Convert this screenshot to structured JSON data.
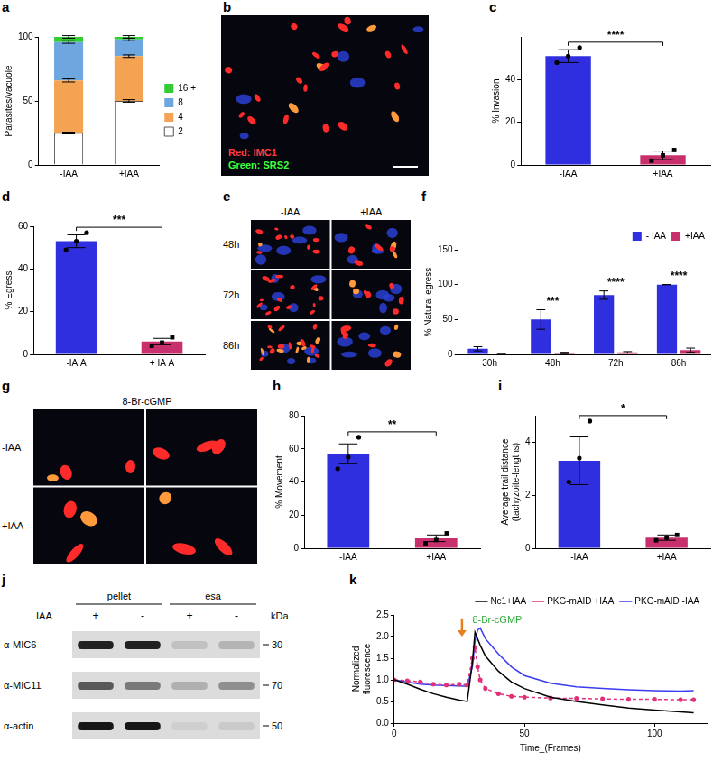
{
  "chart_data": [
    {
      "panel": "a",
      "type": "bar",
      "stacked": true,
      "categories": [
        "-IAA",
        "+IAA"
      ],
      "y_label": "Parasites/vacuole",
      "ylim": [
        0,
        100
      ],
      "yticks": [
        0,
        50,
        100
      ],
      "grid": false,
      "legend": "right",
      "series": [
        {
          "name": "2",
          "color": "#ffffff",
          "values": [
            25,
            50
          ],
          "errors": [
            0.7,
            1
          ]
        },
        {
          "name": "4",
          "color": "#f4a352",
          "values": [
            41,
            35
          ],
          "errors": [
            1.2,
            1
          ]
        },
        {
          "name": "8",
          "color": "#6ea6e0",
          "values": [
            30,
            13
          ],
          "errors": [
            1,
            1
          ]
        },
        {
          "name": "16 +",
          "color": "#33cc33",
          "values": [
            4,
            2
          ],
          "errors": [
            1,
            1
          ]
        }
      ]
    },
    {
      "panel": "c",
      "type": "bar",
      "categories": [
        "-IAA",
        "+IAA"
      ],
      "colors": [
        "#2f2fe0",
        "#c7306c"
      ],
      "values": [
        51,
        4.5
      ],
      "errors": [
        3,
        2
      ],
      "points": [
        [
          48,
          51,
          55
        ],
        [
          2,
          4.5,
          7
        ]
      ],
      "y_label": "% Invasion",
      "ylim": [
        0,
        60
      ],
      "yticks": [
        0,
        20,
        40
      ],
      "significance": "****",
      "grid": false
    },
    {
      "panel": "d",
      "type": "bar",
      "categories": [
        "-IA A",
        "+ IA A"
      ],
      "colors": [
        "#2f2fe0",
        "#c7306c"
      ],
      "values": [
        53,
        6
      ],
      "errors": [
        3,
        1.5
      ],
      "points": [
        [
          49,
          53,
          57
        ],
        [
          4,
          5.5,
          8
        ]
      ],
      "y_label": "% Egress",
      "ylim": [
        0,
        60
      ],
      "yticks": [
        0,
        20,
        40,
        60
      ],
      "significance": "***",
      "grid": false
    },
    {
      "panel": "f",
      "type": "bar",
      "categories": [
        "30h",
        "48h",
        "72h",
        "86h"
      ],
      "y_label": "% Natural egress",
      "ylim": [
        0,
        150
      ],
      "yticks": [
        0,
        50,
        100,
        150
      ],
      "grid": false,
      "legend": "top",
      "series": [
        {
          "name": "- IAA",
          "color": "#2f2fe0",
          "values": [
            8,
            50,
            85,
            100
          ],
          "errors": [
            3,
            14,
            6,
            0
          ]
        },
        {
          "name": "+IAA",
          "color": "#c7306c",
          "values": [
            0,
            2,
            3,
            6
          ],
          "errors": [
            0,
            1,
            1,
            3
          ]
        }
      ],
      "significance": [
        null,
        "***",
        "****",
        "****"
      ]
    },
    {
      "panel": "h",
      "type": "bar",
      "categories": [
        "-IAA",
        "+IAA"
      ],
      "colors": [
        "#2f2fe0",
        "#c7306c"
      ],
      "values": [
        57,
        6
      ],
      "errors": [
        6,
        2
      ],
      "points": [
        [
          48,
          55,
          67
        ],
        [
          3,
          5,
          9
        ]
      ],
      "y_label": "% Movement",
      "ylim": [
        0,
        80
      ],
      "yticks": [
        0,
        20,
        40,
        60,
        80
      ],
      "significance": "**",
      "grid": false
    },
    {
      "panel": "i",
      "type": "bar",
      "categories": [
        "-IAA",
        "+IAA"
      ],
      "colors": [
        "#2f2fe0",
        "#c7306c"
      ],
      "values": [
        3.3,
        0.4
      ],
      "errors": [
        0.9,
        0.1
      ],
      "points": [
        [
          2.5,
          3.4,
          4.8
        ],
        [
          0.3,
          0.4,
          0.5
        ]
      ],
      "y_label": "Average trail distance(tachyzoite-lengths)",
      "ylim": [
        0,
        5
      ],
      "yticks": [
        0,
        2,
        4
      ],
      "significance": "*",
      "grid": false
    },
    {
      "panel": "k",
      "type": "line",
      "x_label": "Time_(Frames)",
      "y_label": "Normalized fluorescence",
      "xlim": [
        0,
        120
      ],
      "xticks": [
        0,
        50,
        100
      ],
      "ylim": [
        0,
        2.5
      ],
      "yticks": [
        {
          "value": 0,
          "label": "0.0"
        },
        {
          "value": 0.5,
          "label": "0.5"
        },
        {
          "value": 1,
          "label": "1.0"
        },
        {
          "value": 1.5,
          "label": "1.5"
        },
        {
          "value": 2,
          "label": "2.0"
        },
        {
          "value": 2.5,
          "label": "2.5"
        }
      ],
      "grid": false,
      "legend": "top",
      "annotation": "8-Br-cGMP",
      "x": [
        0,
        5,
        10,
        15,
        20,
        25,
        28,
        30,
        31,
        32,
        33,
        35,
        40,
        45,
        50,
        60,
        70,
        80,
        90,
        100,
        110,
        115
      ],
      "series": [
        {
          "name": "Nc1+IAA",
          "color": "#000000",
          "line_style": "solid",
          "values": [
            1.0,
            0.9,
            0.78,
            0.68,
            0.6,
            0.53,
            0.5,
            1.4,
            2.1,
            1.95,
            1.8,
            1.55,
            1.2,
            0.95,
            0.8,
            0.6,
            0.5,
            0.42,
            0.35,
            0.3,
            0.26,
            0.24
          ]
        },
        {
          "name": "PKG-mAID +IAA",
          "color": "#e0307a",
          "line_style": "dashed",
          "marker": "circle",
          "values": [
            1.0,
            0.98,
            0.95,
            0.9,
            0.88,
            0.9,
            0.88,
            1.5,
            1.75,
            1.3,
            1.0,
            0.8,
            0.68,
            0.62,
            0.6,
            0.58,
            0.57,
            0.56,
            0.55,
            0.55,
            0.54,
            0.54
          ]
        },
        {
          "name": "PKG-mAID -IAA",
          "color": "#3b3bf0",
          "line_style": "solid",
          "values": [
            1.0,
            0.95,
            0.9,
            0.88,
            0.87,
            0.86,
            0.85,
            1.3,
            1.9,
            2.15,
            2.2,
            1.95,
            1.6,
            1.3,
            1.1,
            0.92,
            0.84,
            0.8,
            0.77,
            0.75,
            0.74,
            0.75
          ]
        }
      ]
    }
  ],
  "images": [
    {
      "panel": "b",
      "labels": [
        {
          "text": "Red: IMC1",
          "color": "#ff3b3b"
        },
        {
          "text": "Green: SRS2",
          "color": "#3bff3b"
        }
      ]
    },
    {
      "panel": "e",
      "columns": [
        "-IAA",
        "+IAA"
      ],
      "rows": [
        "48h",
        "72h",
        "86h"
      ]
    },
    {
      "panel": "g",
      "title": "8-Br-cGMP",
      "rows": [
        "-IAA",
        "+IAA"
      ]
    }
  ],
  "blot": {
    "panel": "j",
    "groups": [
      "pellet",
      "esa"
    ],
    "treatment": "IAA",
    "lanes": [
      "+",
      "-",
      "+",
      "-"
    ],
    "unit": "kDa",
    "rows": [
      {
        "antibody": "α-MIC6",
        "marker": 30
      },
      {
        "antibody": "α-MIC11",
        "marker": 70
      },
      {
        "antibody": "α-actin",
        "marker": 50
      }
    ]
  }
}
